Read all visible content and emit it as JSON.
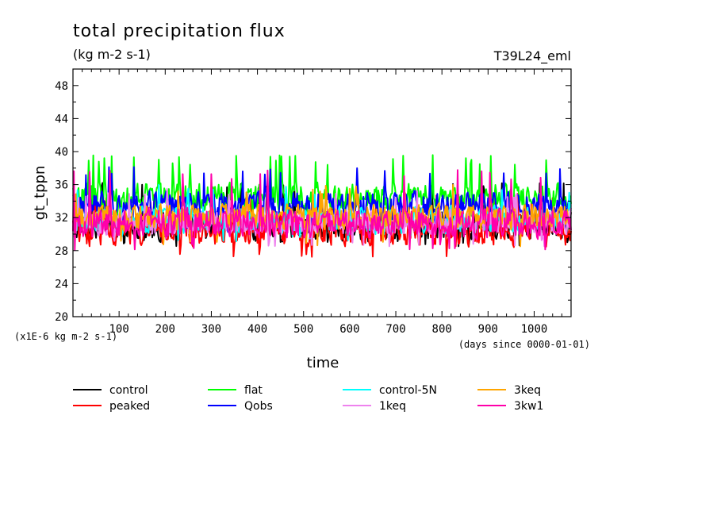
{
  "chart_data": {
    "type": "line",
    "title": "total precipitation flux",
    "units_label": "(kg m-2 s-1)",
    "run_label": "T39L24_eml",
    "xlabel": "time",
    "x_note": "(days since 0000-01-01)",
    "ylabel": "gt_tppn",
    "y_scale_note": "(x1E-6 kg m-2 s-1)",
    "xlim": [
      0,
      1080
    ],
    "ylim": [
      20,
      50
    ],
    "x_ticks": [
      100,
      200,
      300,
      400,
      500,
      600,
      700,
      800,
      900,
      1000
    ],
    "y_ticks": [
      20,
      24,
      28,
      32,
      36,
      40,
      44,
      48
    ],
    "grid": false,
    "legend_position": "bottom",
    "series": [
      {
        "name": "control",
        "color": "#000000",
        "baseline": 31.0,
        "amplitude": 2.0,
        "low": 28.5,
        "high": 36.5
      },
      {
        "name": "peaked",
        "color": "#ff0000",
        "baseline": 30.6,
        "amplitude": 2.4,
        "low": 27.0,
        "high": 35.0
      },
      {
        "name": "flat",
        "color": "#00ff00",
        "baseline": 34.5,
        "amplitude": 2.0,
        "low": 31.5,
        "high": 39.6
      },
      {
        "name": "Qobs",
        "color": "#0000ff",
        "baseline": 33.5,
        "amplitude": 2.0,
        "low": 30.0,
        "high": 38.3
      },
      {
        "name": "control-5N",
        "color": "#00ffff",
        "baseline": 31.7,
        "amplitude": 1.9,
        "low": 29.0,
        "high": 36.0
      },
      {
        "name": "1keq",
        "color": "#ee82ee",
        "baseline": 31.4,
        "amplitude": 1.9,
        "low": 28.5,
        "high": 35.5
      },
      {
        "name": "3keq",
        "color": "#ffa500",
        "baseline": 32.0,
        "amplitude": 1.9,
        "low": 28.5,
        "high": 36.0
      },
      {
        "name": "3kw1",
        "color": "#ff00aa",
        "baseline": 31.3,
        "amplitude": 2.1,
        "low": 28.0,
        "high": 37.8
      }
    ]
  }
}
